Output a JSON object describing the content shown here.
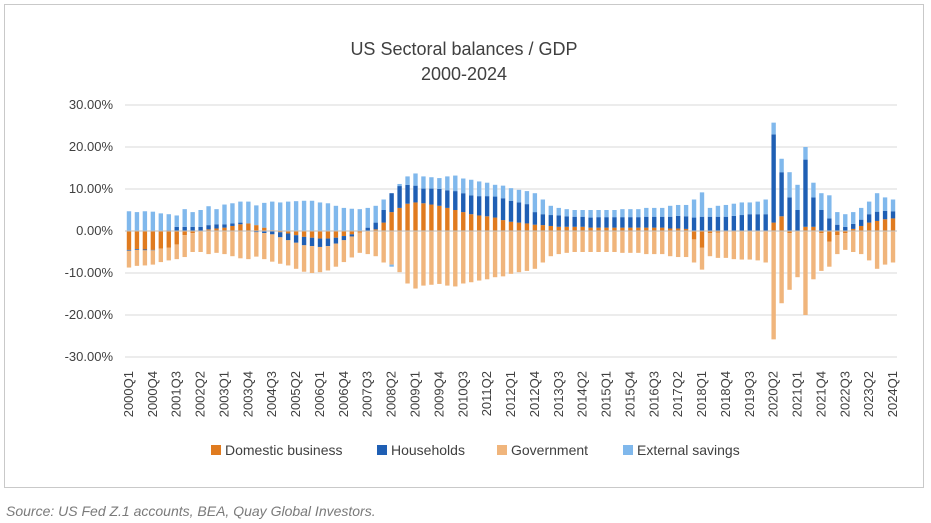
{
  "chart_data": {
    "type": "bar",
    "stacked": true,
    "title": "US Sectoral balances / GDP",
    "subtitle": "2000-2024",
    "xlabel": "",
    "ylabel": "",
    "ylim": [
      -0.3,
      0.3
    ],
    "yticks": [
      -0.3,
      -0.2,
      -0.1,
      0.0,
      0.1,
      0.2,
      0.3
    ],
    "ytick_labels": [
      "-30.00%",
      "-20.00%",
      "-10.00%",
      "0.00%",
      "10.00%",
      "20.00%",
      "30.00%"
    ],
    "grid": "horizontal",
    "legend_position": "bottom",
    "categories_start": "2000Q1",
    "num_categories": 97,
    "x_tick_labels": [
      "2000Q1",
      "2000Q4",
      "2001Q3",
      "2002Q2",
      "2003Q1",
      "2003Q4",
      "2004Q3",
      "2005Q2",
      "2006Q1",
      "2006Q4",
      "2007Q3",
      "2008Q2",
      "2009Q1",
      "2009Q4",
      "2010Q3",
      "2011Q2",
      "2012Q1",
      "2012Q4",
      "2013Q3",
      "2014Q2",
      "2015Q1",
      "2015Q4",
      "2016Q3",
      "2017Q2",
      "2018Q1",
      "2018Q4",
      "2019Q3",
      "2020Q2",
      "2021Q1",
      "2021Q4",
      "2022Q3",
      "2023Q2",
      "2024Q1"
    ],
    "series": [
      {
        "name": "Domestic business",
        "color": "#e07b1f",
        "values": [
          -0.045,
          -0.043,
          -0.044,
          -0.045,
          -0.042,
          -0.04,
          -0.032,
          -0.01,
          -0.005,
          0.0,
          0.004,
          0.006,
          0.008,
          0.012,
          0.016,
          0.018,
          0.014,
          0.008,
          0.002,
          -0.003,
          -0.006,
          -0.01,
          -0.014,
          -0.016,
          -0.018,
          -0.018,
          -0.016,
          -0.012,
          -0.008,
          -0.004,
          0.0,
          0.004,
          0.02,
          0.045,
          0.055,
          0.065,
          0.068,
          0.066,
          0.063,
          0.06,
          0.055,
          0.05,
          0.045,
          0.04,
          0.037,
          0.035,
          0.032,
          0.026,
          0.022,
          0.02,
          0.018,
          0.015,
          0.014,
          0.012,
          0.01,
          0.01,
          0.01,
          0.01,
          0.008,
          0.008,
          0.008,
          0.008,
          0.008,
          0.008,
          0.008,
          0.008,
          0.008,
          0.008,
          0.006,
          0.006,
          0.005,
          -0.02,
          -0.04,
          -0.005,
          -0.004,
          -0.002,
          -0.002,
          0.0,
          0.0,
          0.0,
          0.0,
          0.02,
          0.035,
          -0.005,
          0.0,
          0.01,
          0.01,
          -0.005,
          -0.025,
          -0.01,
          -0.005,
          0.005,
          0.012,
          0.02,
          0.024,
          0.028,
          0.03
        ]
      },
      {
        "name": "Households",
        "color": "#1f5fb4",
        "values": [
          -0.002,
          -0.002,
          -0.002,
          -0.001,
          0.0,
          0.002,
          0.01,
          0.01,
          0.01,
          0.01,
          0.01,
          0.01,
          0.008,
          0.006,
          0.004,
          0.0,
          -0.003,
          -0.005,
          -0.008,
          -0.012,
          -0.016,
          -0.018,
          -0.02,
          -0.02,
          -0.02,
          -0.018,
          -0.014,
          -0.01,
          -0.005,
          0.0,
          0.008,
          0.016,
          0.03,
          0.045,
          0.052,
          0.045,
          0.04,
          0.035,
          0.038,
          0.04,
          0.042,
          0.045,
          0.045,
          0.045,
          0.046,
          0.048,
          0.05,
          0.052,
          0.05,
          0.048,
          0.046,
          0.03,
          0.026,
          0.026,
          0.027,
          0.025,
          0.024,
          0.024,
          0.024,
          0.025,
          0.025,
          0.025,
          0.025,
          0.025,
          0.025,
          0.026,
          0.026,
          0.026,
          0.028,
          0.03,
          0.03,
          0.032,
          0.034,
          0.034,
          0.034,
          0.034,
          0.036,
          0.038,
          0.04,
          0.04,
          0.04,
          0.21,
          0.105,
          0.08,
          0.05,
          0.16,
          0.07,
          0.05,
          0.03,
          0.015,
          0.01,
          0.012,
          0.015,
          0.02,
          0.022,
          0.02,
          0.017
        ]
      },
      {
        "name": "Government",
        "color": "#f0b57c",
        "values": [
          -0.04,
          -0.038,
          -0.036,
          -0.034,
          -0.032,
          -0.03,
          -0.035,
          -0.052,
          -0.045,
          -0.05,
          -0.055,
          -0.052,
          -0.055,
          -0.06,
          -0.065,
          -0.067,
          -0.058,
          -0.062,
          -0.065,
          -0.063,
          -0.06,
          -0.062,
          -0.063,
          -0.064,
          -0.06,
          -0.058,
          -0.055,
          -0.052,
          -0.05,
          -0.048,
          -0.055,
          -0.06,
          -0.075,
          -0.08,
          -0.098,
          -0.125,
          -0.137,
          -0.13,
          -0.128,
          -0.126,
          -0.13,
          -0.132,
          -0.125,
          -0.122,
          -0.118,
          -0.115,
          -0.11,
          -0.108,
          -0.102,
          -0.098,
          -0.095,
          -0.09,
          -0.075,
          -0.06,
          -0.055,
          -0.052,
          -0.05,
          -0.05,
          -0.05,
          -0.05,
          -0.05,
          -0.05,
          -0.052,
          -0.052,
          -0.052,
          -0.055,
          -0.055,
          -0.055,
          -0.06,
          -0.062,
          -0.062,
          -0.055,
          -0.052,
          -0.055,
          -0.06,
          -0.062,
          -0.065,
          -0.068,
          -0.068,
          -0.07,
          -0.075,
          -0.258,
          -0.172,
          -0.135,
          -0.11,
          -0.2,
          -0.115,
          -0.09,
          -0.06,
          -0.045,
          -0.04,
          -0.05,
          -0.055,
          -0.07,
          -0.09,
          -0.08,
          -0.075
        ]
      },
      {
        "name": "External savings",
        "color": "#80b8ec",
        "values": [
          0.047,
          0.045,
          0.047,
          0.046,
          0.042,
          0.038,
          0.027,
          0.042,
          0.035,
          0.04,
          0.045,
          0.036,
          0.047,
          0.048,
          0.05,
          0.052,
          0.047,
          0.059,
          0.068,
          0.068,
          0.07,
          0.071,
          0.072,
          0.072,
          0.068,
          0.066,
          0.06,
          0.055,
          0.053,
          0.052,
          0.047,
          0.04,
          0.025,
          -0.005,
          0.005,
          0.02,
          0.029,
          0.029,
          0.027,
          0.026,
          0.033,
          0.037,
          0.035,
          0.037,
          0.035,
          0.032,
          0.028,
          0.03,
          0.03,
          0.03,
          0.031,
          0.045,
          0.035,
          0.022,
          0.018,
          0.017,
          0.016,
          0.016,
          0.018,
          0.017,
          0.017,
          0.017,
          0.019,
          0.019,
          0.019,
          0.021,
          0.021,
          0.021,
          0.026,
          0.026,
          0.027,
          0.043,
          0.058,
          0.021,
          0.026,
          0.028,
          0.029,
          0.03,
          0.028,
          0.03,
          0.035,
          0.028,
          0.032,
          0.06,
          0.06,
          0.03,
          0.035,
          0.04,
          0.055,
          0.03,
          0.03,
          0.028,
          0.028,
          0.03,
          0.044,
          0.032,
          0.028
        ]
      }
    ]
  },
  "source": "Source: US Fed Z.1 accounts, BEA, Quay Global Investors."
}
